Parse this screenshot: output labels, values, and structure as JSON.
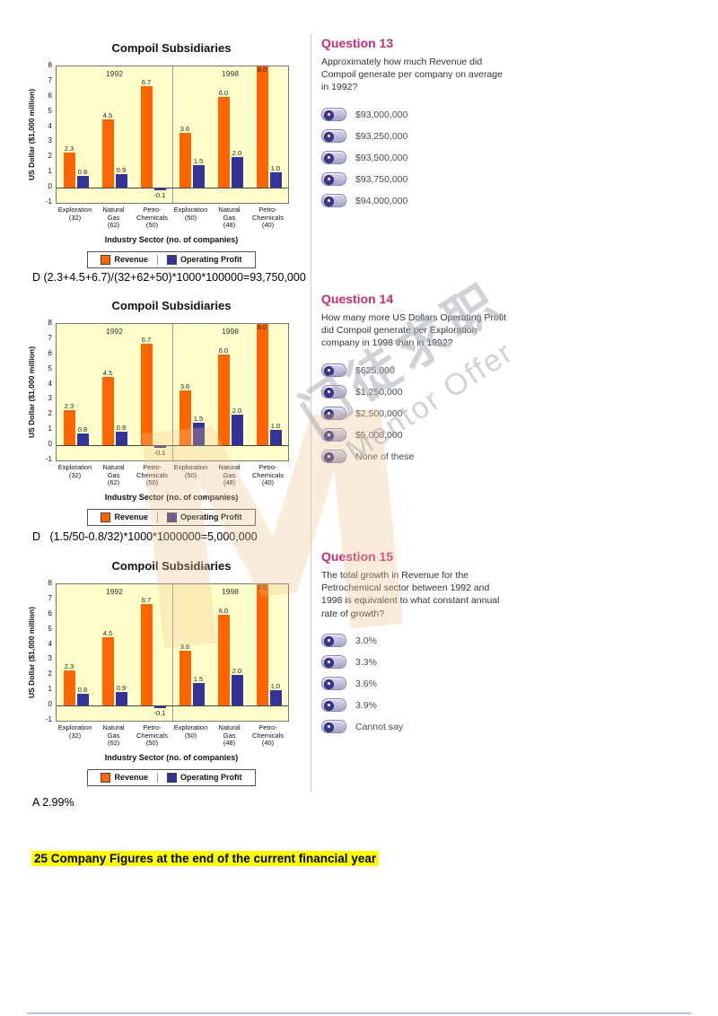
{
  "watermark": {
    "cjk": "门徒求职",
    "latin": "Mentor Offer",
    "logo_letter": "M"
  },
  "chart_data": {
    "type": "bar",
    "title": "Compoil Subsidiaries",
    "ylabel": "US Dollar ($1,000 million)",
    "xlabel": "Industry Sector (no. of companies)",
    "ylim": [
      -1,
      8
    ],
    "yticks": [
      -1,
      0,
      1,
      2,
      3,
      4,
      5,
      6,
      7,
      8
    ],
    "grid": false,
    "plot_bg": "#FFFFCC",
    "legend_position": "bottom",
    "group_labels": [
      "1992",
      "1998"
    ],
    "categories": [
      {
        "group": "1992",
        "lines": [
          "Exploration",
          "(32)"
        ]
      },
      {
        "group": "1992",
        "lines": [
          "Natural",
          "Gas",
          "(62)"
        ]
      },
      {
        "group": "1992",
        "lines": [
          "Petro-",
          "Chemicals",
          "(50)"
        ]
      },
      {
        "group": "1998",
        "lines": [
          "Exploration",
          "(50)"
        ]
      },
      {
        "group": "1998",
        "lines": [
          "Natural",
          "Gas",
          "(48)"
        ]
      },
      {
        "group": "1998",
        "lines": [
          "Petro-",
          "Chemicals",
          "(40)"
        ]
      }
    ],
    "series": [
      {
        "name": "Revenue",
        "color": "#FF6600",
        "values": [
          2.3,
          4.5,
          6.7,
          3.6,
          6.0,
          8.0
        ]
      },
      {
        "name": "Operating Profit",
        "color": "#333399",
        "values": [
          0.8,
          0.9,
          -0.1,
          1.5,
          2.0,
          1.0
        ]
      }
    ]
  },
  "questions": [
    {
      "number": "Question 13",
      "text": "Approximately how much Revenue did Compoil generate per company on average in 1992?",
      "options": [
        "$93,000,000",
        "$93,250,000",
        "$93,500,000",
        "$93,750,000",
        "$94,000,000"
      ],
      "answer": "D (2.3+4.5+6.7)/(32+62+50)*1000*100000=93,750,000"
    },
    {
      "number": "Question 14",
      "text": "How many more US Dollars Operating Profit did Compoil generate per Exploration company in 1998 than in 1992?",
      "options": [
        "$625,000",
        "$1,250,000",
        "$2,500,000",
        "$5,000,000",
        "None of these"
      ],
      "answer": "D   (1.5/50-0.8/32)*1000*1000000=5,000,000"
    },
    {
      "number": "Question 15",
      "text": "The total growth in Revenue for the Petrochemical sector between 1992 and 1998 is equivalent to what constant annual rate of growth?",
      "options": [
        "3.0%",
        "3.3%",
        "3.6%",
        "3.9%",
        "Cannot say"
      ],
      "answer": "A 2.99%"
    }
  ],
  "footer_heading": "25 Company Figures at the end of the current financial year",
  "colors": {
    "question_heading": "#C22E72",
    "revenue": "#FF6600",
    "operating_profit": "#333399",
    "chart_background": "#FFFFCC",
    "highlight": "#FFFF00"
  }
}
